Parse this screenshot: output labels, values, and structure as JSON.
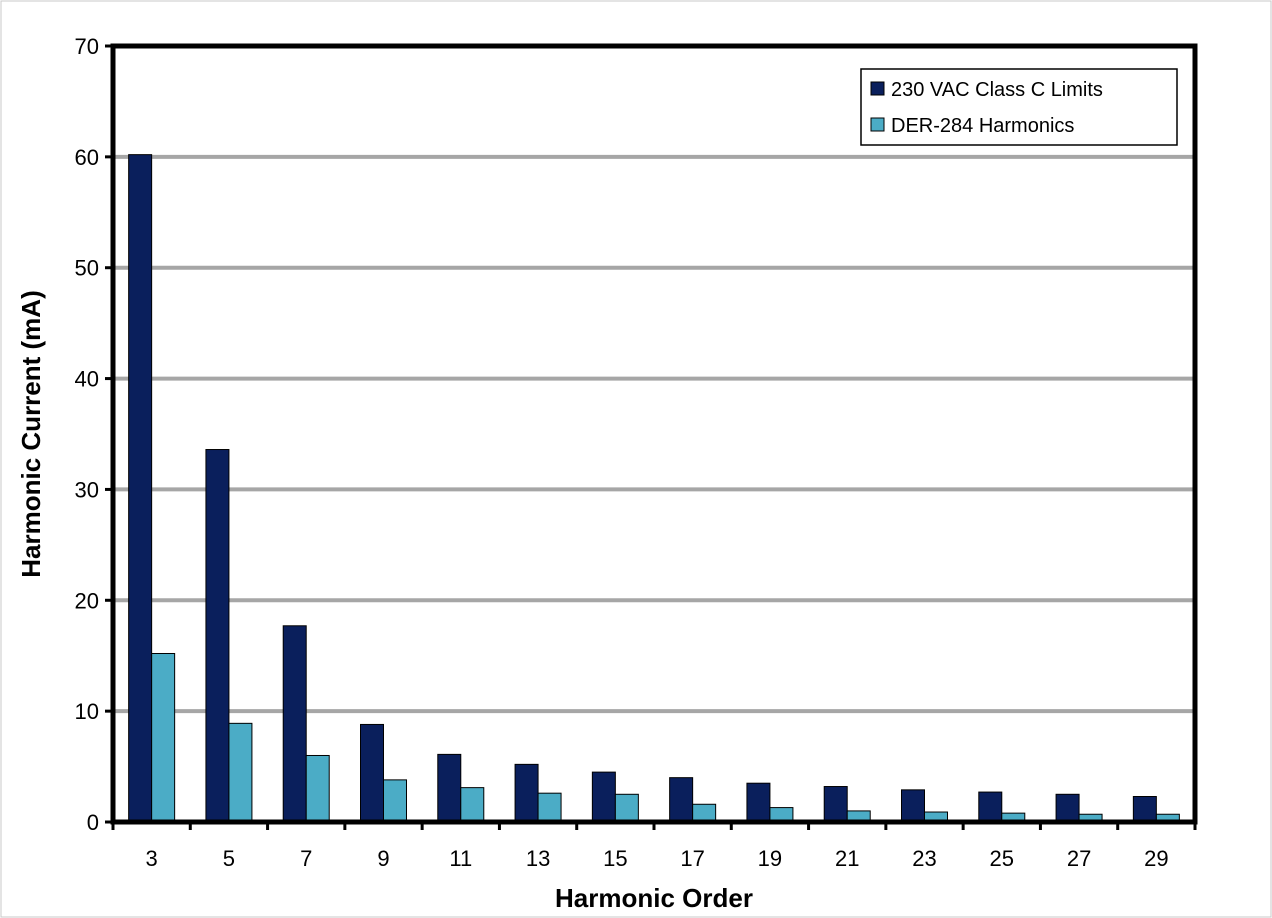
{
  "chart_data": {
    "type": "bar",
    "title": "",
    "xlabel": "Harmonic Order",
    "ylabel": "Harmonic Current (mA)",
    "categories": [
      "3",
      "5",
      "7",
      "9",
      "11",
      "13",
      "15",
      "17",
      "19",
      "21",
      "23",
      "25",
      "27",
      "29"
    ],
    "series": [
      {
        "name": "230 VAC Class C Limits",
        "color": "#0a1f5c",
        "values": [
          60.2,
          33.6,
          17.7,
          8.8,
          6.1,
          5.2,
          4.5,
          4.0,
          3.5,
          3.2,
          2.9,
          2.7,
          2.5,
          2.3
        ]
      },
      {
        "name": "DER-284 Harmonics",
        "color": "#4bacc6",
        "values": [
          15.2,
          8.9,
          6.0,
          3.8,
          3.1,
          2.6,
          2.5,
          1.6,
          1.3,
          1.0,
          0.9,
          0.8,
          0.7,
          0.7
        ]
      }
    ],
    "ylim": [
      0,
      70
    ],
    "yticks": [
      0,
      10,
      20,
      30,
      40,
      50,
      60,
      70
    ],
    "grid": true,
    "legend_position": "top-right"
  }
}
